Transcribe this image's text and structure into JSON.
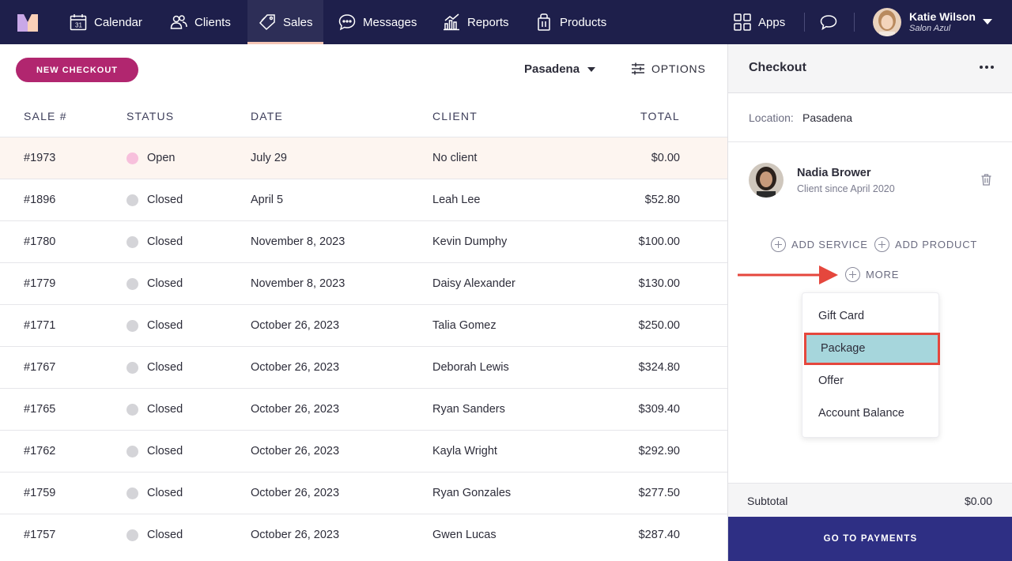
{
  "nav": {
    "items": [
      {
        "label": "Calendar",
        "icon": "calendar-icon"
      },
      {
        "label": "Clients",
        "icon": "clients-icon"
      },
      {
        "label": "Sales",
        "icon": "tag-icon",
        "active": true
      },
      {
        "label": "Messages",
        "icon": "chat-icon"
      },
      {
        "label": "Reports",
        "icon": "chart-icon"
      },
      {
        "label": "Products",
        "icon": "bag-icon"
      }
    ],
    "apps_label": "Apps",
    "user": {
      "name": "Katie Wilson",
      "business": "Salon Azul"
    }
  },
  "toolbar": {
    "new_checkout": "NEW CHECKOUT",
    "location": "Pasadena",
    "options": "OPTIONS"
  },
  "table": {
    "headers": [
      "SALE #",
      "STATUS",
      "DATE",
      "CLIENT",
      "TOTAL"
    ],
    "rows": [
      {
        "sale": "#1973",
        "status": "Open",
        "date": "July 29",
        "client": "No client",
        "total": "$0.00"
      },
      {
        "sale": "#1896",
        "status": "Closed",
        "date": "April 5",
        "client": "Leah Lee",
        "total": "$52.80"
      },
      {
        "sale": "#1780",
        "status": "Closed",
        "date": "November 8, 2023",
        "client": "Kevin Dumphy",
        "total": "$100.00"
      },
      {
        "sale": "#1779",
        "status": "Closed",
        "date": "November 8, 2023",
        "client": "Daisy Alexander",
        "total": "$130.00"
      },
      {
        "sale": "#1771",
        "status": "Closed",
        "date": "October 26, 2023",
        "client": "Talia Gomez",
        "total": "$250.00"
      },
      {
        "sale": "#1767",
        "status": "Closed",
        "date": "October 26, 2023",
        "client": "Deborah Lewis",
        "total": "$324.80"
      },
      {
        "sale": "#1765",
        "status": "Closed",
        "date": "October 26, 2023",
        "client": "Ryan Sanders",
        "total": "$309.40"
      },
      {
        "sale": "#1762",
        "status": "Closed",
        "date": "October 26, 2023",
        "client": "Kayla Wright",
        "total": "$292.90"
      },
      {
        "sale": "#1759",
        "status": "Closed",
        "date": "October 26, 2023",
        "client": "Ryan Gonzales",
        "total": "$277.50"
      },
      {
        "sale": "#1757",
        "status": "Closed",
        "date": "October 26, 2023",
        "client": "Gwen Lucas",
        "total": "$287.40"
      }
    ]
  },
  "checkout": {
    "title": "Checkout",
    "location_label": "Location:",
    "location_value": "Pasadena",
    "client": {
      "name": "Nadia Brower",
      "since": "Client since April 2020"
    },
    "add_service": "ADD SERVICE",
    "add_product": "ADD PRODUCT",
    "more": "MORE",
    "menu": [
      "Gift Card",
      "Package",
      "Offer",
      "Account Balance"
    ],
    "menu_selected": "Package",
    "subtotal_label": "Subtotal",
    "subtotal_value": "$0.00",
    "go_to_payments": "GO TO PAYMENTS"
  },
  "colors": {
    "nav_bg": "#1e1f4b",
    "accent_pink": "#b1266f",
    "pay_button": "#2e2f84",
    "highlight_red": "#e5473d",
    "selected_teal": "#a6d6dc"
  }
}
